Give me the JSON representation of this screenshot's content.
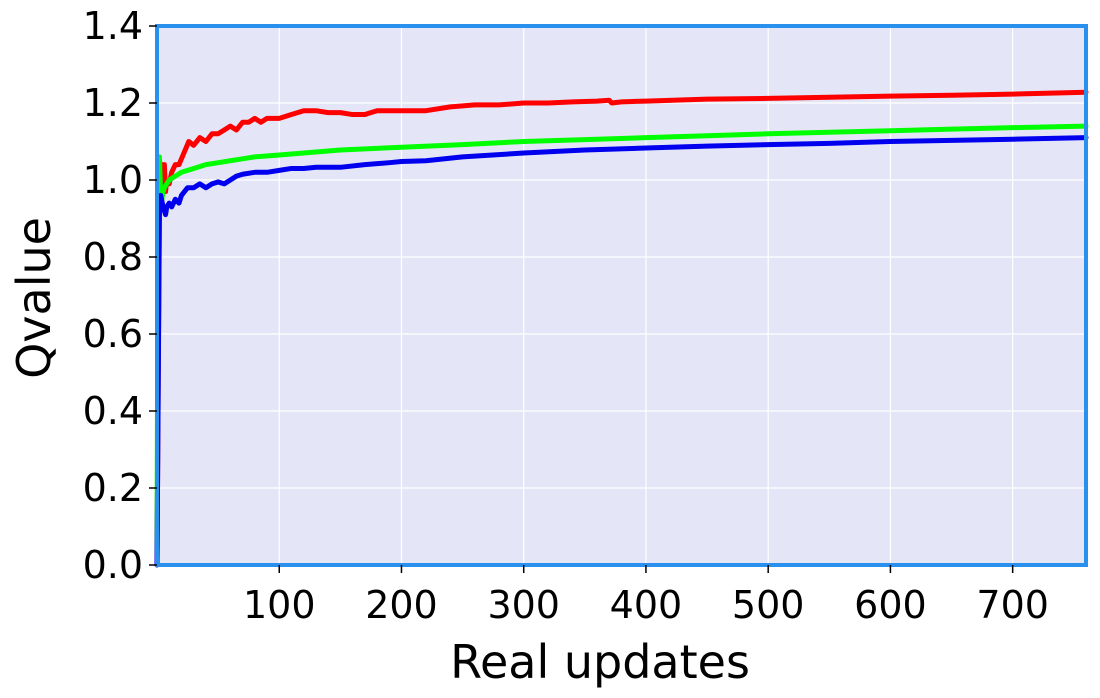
{
  "chart_data": {
    "type": "line",
    "title": "",
    "xlabel": "Real updates",
    "ylabel": "Qvalue",
    "xlim": [
      0,
      760
    ],
    "ylim": [
      0.0,
      1.4
    ],
    "x_ticks": [
      100,
      200,
      300,
      400,
      500,
      600,
      700
    ],
    "x_tick_labels": [
      "100",
      "200",
      "300",
      "400",
      "500",
      "600",
      "700"
    ],
    "y_ticks": [
      0.0,
      0.2,
      0.4,
      0.6,
      0.8,
      1.0,
      1.2,
      1.4
    ],
    "y_tick_labels": [
      "0.0",
      "0.2",
      "0.4",
      "0.6",
      "0.8",
      "1.0",
      "1.2",
      "1.4"
    ],
    "grid": true,
    "legend": "none",
    "colors": {
      "plot_background": "#e4e6f8",
      "frame": "#2a90ee",
      "grid": "#ffffff"
    },
    "series": [
      {
        "name": "red",
        "color": "#ff0000",
        "x": [
          0,
          2,
          3,
          4,
          5,
          6,
          7,
          8,
          10,
          12,
          15,
          18,
          22,
          26,
          30,
          35,
          40,
          45,
          50,
          55,
          60,
          65,
          70,
          75,
          80,
          85,
          90,
          95,
          100,
          110,
          120,
          130,
          140,
          150,
          160,
          170,
          180,
          190,
          200,
          220,
          240,
          260,
          280,
          300,
          320,
          340,
          360,
          370,
          372,
          380,
          400,
          450,
          500,
          550,
          600,
          650,
          700,
          760
        ],
        "values": [
          0.0,
          0.96,
          0.93,
          1.04,
          1.0,
          1.04,
          0.97,
          1.0,
          0.99,
          1.02,
          1.04,
          1.04,
          1.07,
          1.1,
          1.09,
          1.11,
          1.1,
          1.12,
          1.12,
          1.13,
          1.14,
          1.13,
          1.15,
          1.15,
          1.16,
          1.15,
          1.16,
          1.16,
          1.16,
          1.17,
          1.18,
          1.18,
          1.175,
          1.175,
          1.17,
          1.17,
          1.18,
          1.18,
          1.18,
          1.18,
          1.19,
          1.195,
          1.195,
          1.2,
          1.2,
          1.203,
          1.205,
          1.207,
          1.2,
          1.203,
          1.205,
          1.21,
          1.212,
          1.215,
          1.218,
          1.22,
          1.223,
          1.228
        ]
      },
      {
        "name": "green",
        "color": "#00ff00",
        "x": [
          0,
          1,
          2,
          3,
          4,
          5,
          6,
          8,
          10,
          15,
          20,
          30,
          40,
          50,
          60,
          70,
          80,
          100,
          120,
          150,
          200,
          250,
          300,
          350,
          400,
          450,
          500,
          550,
          600,
          650,
          700,
          760
        ],
        "values": [
          0.03,
          1.05,
          1.06,
          0.96,
          0.95,
          0.97,
          0.98,
          0.99,
          1.0,
          1.01,
          1.02,
          1.03,
          1.04,
          1.045,
          1.05,
          1.055,
          1.06,
          1.065,
          1.07,
          1.078,
          1.085,
          1.092,
          1.1,
          1.105,
          1.11,
          1.115,
          1.12,
          1.124,
          1.128,
          1.132,
          1.136,
          1.14
        ]
      },
      {
        "name": "blue",
        "color": "#0000ee",
        "x": [
          0,
          2,
          3,
          5,
          7,
          8,
          10,
          12,
          15,
          18,
          20,
          25,
          30,
          35,
          40,
          45,
          50,
          55,
          60,
          65,
          70,
          80,
          90,
          100,
          110,
          120,
          130,
          150,
          170,
          190,
          200,
          220,
          250,
          300,
          350,
          400,
          450,
          500,
          550,
          600,
          650,
          700,
          760
        ],
        "values": [
          0.0,
          0.93,
          0.96,
          0.93,
          0.91,
          0.93,
          0.94,
          0.93,
          0.95,
          0.94,
          0.96,
          0.98,
          0.98,
          0.99,
          0.98,
          0.99,
          0.995,
          0.99,
          1.0,
          1.01,
          1.015,
          1.02,
          1.02,
          1.025,
          1.03,
          1.03,
          1.033,
          1.033,
          1.04,
          1.045,
          1.048,
          1.05,
          1.06,
          1.07,
          1.078,
          1.083,
          1.088,
          1.092,
          1.095,
          1.1,
          1.103,
          1.106,
          1.11
        ]
      }
    ]
  }
}
